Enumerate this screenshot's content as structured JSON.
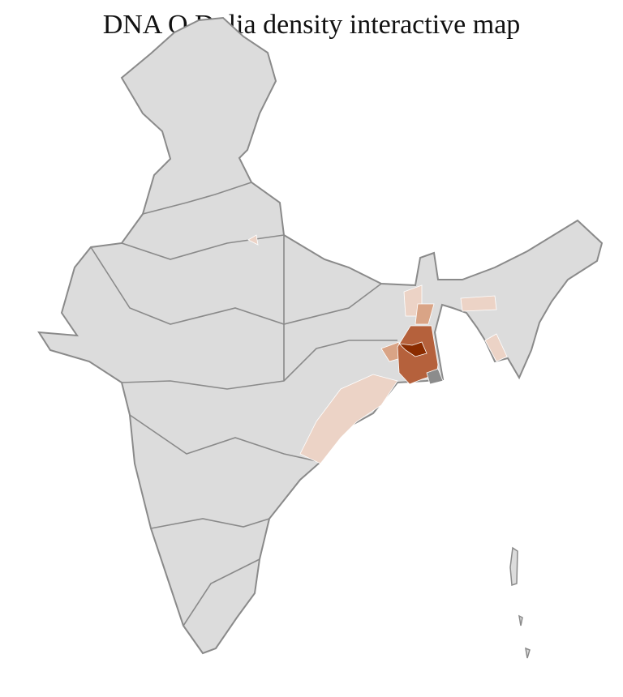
{
  "title": "DNA O Dulia density interactive map",
  "colors": {
    "land": "#dcdcdc",
    "district_border": "#ffffff",
    "state_border": "#8a8a8a",
    "density_low": "#ecd3c6",
    "density_mid": "#d9a486",
    "density_high": "#b5613c",
    "density_max": "#8b2c00",
    "no_data": "#8c8c8c"
  }
}
